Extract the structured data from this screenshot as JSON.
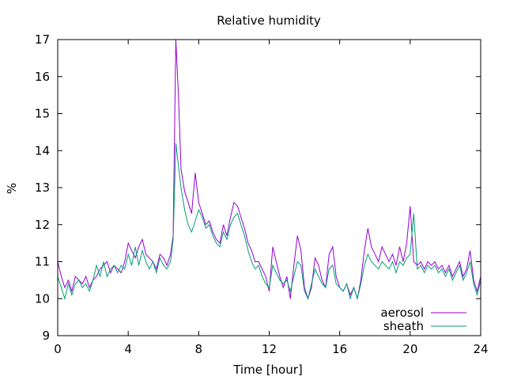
{
  "chart_data": {
    "type": "line",
    "title": "Relative humidity",
    "xlabel": "Time [hour]",
    "ylabel": "%",
    "xlim": [
      0,
      24
    ],
    "ylim": [
      9,
      17
    ],
    "xticks": [
      0,
      4,
      8,
      12,
      16,
      20,
      24
    ],
    "yticks": [
      9,
      10,
      11,
      12,
      13,
      14,
      15,
      16,
      17
    ],
    "grid": false,
    "legend_position": "bottom-right",
    "series": [
      {
        "name": "aerosol",
        "color": "#9400d3",
        "x": [
          0,
          0.2,
          0.4,
          0.6,
          0.8,
          1.0,
          1.2,
          1.4,
          1.6,
          1.8,
          2.0,
          2.2,
          2.4,
          2.6,
          2.8,
          3.0,
          3.2,
          3.4,
          3.6,
          3.8,
          4.0,
          4.2,
          4.4,
          4.6,
          4.8,
          5.0,
          5.2,
          5.4,
          5.6,
          5.8,
          6.0,
          6.2,
          6.4,
          6.55,
          6.7,
          6.85,
          7.0,
          7.2,
          7.4,
          7.6,
          7.8,
          8.0,
          8.2,
          8.4,
          8.6,
          8.8,
          9.0,
          9.2,
          9.4,
          9.6,
          9.8,
          10.0,
          10.2,
          10.4,
          10.6,
          10.8,
          11.0,
          11.2,
          11.4,
          11.6,
          11.8,
          12.0,
          12.2,
          12.4,
          12.6,
          12.8,
          13.0,
          13.2,
          13.4,
          13.6,
          13.8,
          14.0,
          14.2,
          14.4,
          14.6,
          14.8,
          15.0,
          15.2,
          15.4,
          15.6,
          15.8,
          16.0,
          16.2,
          16.4,
          16.6,
          16.8,
          17.0,
          17.2,
          17.4,
          17.6,
          17.8,
          18.0,
          18.2,
          18.4,
          18.6,
          18.8,
          19.0,
          19.2,
          19.4,
          19.6,
          19.8,
          20.0,
          20.2,
          20.4,
          20.6,
          20.8,
          21.0,
          21.2,
          21.4,
          21.6,
          21.8,
          22.0,
          22.2,
          22.4,
          22.6,
          22.8,
          23.0,
          23.2,
          23.4,
          23.6,
          23.8,
          24.0
        ],
        "y": [
          11.0,
          10.6,
          10.3,
          10.5,
          10.2,
          10.6,
          10.5,
          10.4,
          10.6,
          10.3,
          10.5,
          10.6,
          10.8,
          10.9,
          11.0,
          10.7,
          10.9,
          10.8,
          10.7,
          11.0,
          11.5,
          11.3,
          11.1,
          11.4,
          11.6,
          11.2,
          11.1,
          11.0,
          10.8,
          11.2,
          11.1,
          10.9,
          11.2,
          11.7,
          17.0,
          15.5,
          13.5,
          12.9,
          12.6,
          12.3,
          13.4,
          12.6,
          12.3,
          12.0,
          12.1,
          11.8,
          11.6,
          11.5,
          12.0,
          11.7,
          12.2,
          12.6,
          12.5,
          12.2,
          11.9,
          11.5,
          11.3,
          11.0,
          11.0,
          10.8,
          10.6,
          10.2,
          11.4,
          11.0,
          10.6,
          10.3,
          10.6,
          10.0,
          10.9,
          11.7,
          11.3,
          10.3,
          10.0,
          10.3,
          11.1,
          10.9,
          10.5,
          10.3,
          11.2,
          11.4,
          10.6,
          10.3,
          10.2,
          10.4,
          10.1,
          10.3,
          10.0,
          10.5,
          11.3,
          11.9,
          11.4,
          11.2,
          11.0,
          11.4,
          11.2,
          11.0,
          11.2,
          10.9,
          11.4,
          11.0,
          11.5,
          12.5,
          11.0,
          10.9,
          11.0,
          10.8,
          11.0,
          10.9,
          11.0,
          10.8,
          10.9,
          10.7,
          10.9,
          10.6,
          10.8,
          11.0,
          10.6,
          10.8,
          11.3,
          10.5,
          10.2,
          10.6
        ]
      },
      {
        "name": "sheath",
        "color": "#009e73",
        "x": [
          0,
          0.2,
          0.4,
          0.6,
          0.8,
          1.0,
          1.2,
          1.4,
          1.6,
          1.8,
          2.0,
          2.2,
          2.4,
          2.6,
          2.8,
          3.0,
          3.2,
          3.4,
          3.6,
          3.8,
          4.0,
          4.2,
          4.4,
          4.6,
          4.8,
          5.0,
          5.2,
          5.4,
          5.6,
          5.8,
          6.0,
          6.2,
          6.4,
          6.55,
          6.7,
          6.85,
          7.0,
          7.2,
          7.4,
          7.6,
          7.8,
          8.0,
          8.2,
          8.4,
          8.6,
          8.8,
          9.0,
          9.2,
          9.4,
          9.6,
          9.8,
          10.0,
          10.2,
          10.4,
          10.6,
          10.8,
          11.0,
          11.2,
          11.4,
          11.6,
          11.8,
          12.0,
          12.2,
          12.4,
          12.6,
          12.8,
          13.0,
          13.2,
          13.4,
          13.6,
          13.8,
          14.0,
          14.2,
          14.4,
          14.6,
          14.8,
          15.0,
          15.2,
          15.4,
          15.6,
          15.8,
          16.0,
          16.2,
          16.4,
          16.6,
          16.8,
          17.0,
          17.2,
          17.4,
          17.6,
          17.8,
          18.0,
          18.2,
          18.4,
          18.6,
          18.8,
          19.0,
          19.2,
          19.4,
          19.6,
          19.8,
          20.0,
          20.2,
          20.4,
          20.6,
          20.8,
          21.0,
          21.2,
          21.4,
          21.6,
          21.8,
          22.0,
          22.2,
          22.4,
          22.6,
          22.8,
          23.0,
          23.2,
          23.4,
          23.6,
          23.8,
          24.0
        ],
        "y": [
          10.6,
          10.3,
          10.0,
          10.4,
          10.1,
          10.4,
          10.5,
          10.3,
          10.4,
          10.2,
          10.5,
          10.9,
          10.6,
          11.0,
          10.6,
          10.8,
          10.9,
          10.7,
          10.9,
          10.8,
          11.2,
          10.9,
          11.4,
          10.9,
          11.3,
          11.0,
          10.8,
          11.0,
          10.7,
          11.1,
          10.9,
          10.8,
          11.0,
          11.6,
          14.2,
          13.6,
          13.0,
          12.4,
          12.0,
          11.8,
          12.1,
          12.4,
          12.2,
          11.9,
          12.0,
          11.7,
          11.5,
          11.4,
          11.8,
          11.6,
          12.0,
          12.2,
          12.3,
          12.0,
          11.7,
          11.3,
          11.0,
          10.8,
          10.9,
          10.6,
          10.4,
          10.3,
          10.9,
          10.7,
          10.5,
          10.4,
          10.5,
          10.2,
          10.6,
          11.0,
          10.9,
          10.2,
          10.0,
          10.4,
          10.8,
          10.6,
          10.4,
          10.3,
          10.8,
          10.9,
          10.4,
          10.3,
          10.2,
          10.4,
          10.0,
          10.3,
          10.0,
          10.4,
          10.9,
          11.2,
          11.0,
          10.9,
          10.8,
          11.0,
          10.9,
          10.8,
          11.0,
          10.7,
          11.0,
          10.9,
          11.1,
          11.2,
          12.3,
          10.8,
          10.9,
          10.7,
          10.9,
          10.8,
          10.9,
          10.7,
          10.8,
          10.6,
          10.8,
          10.5,
          10.7,
          10.9,
          10.5,
          10.7,
          11.0,
          10.4,
          10.1,
          10.5
        ]
      }
    ]
  }
}
